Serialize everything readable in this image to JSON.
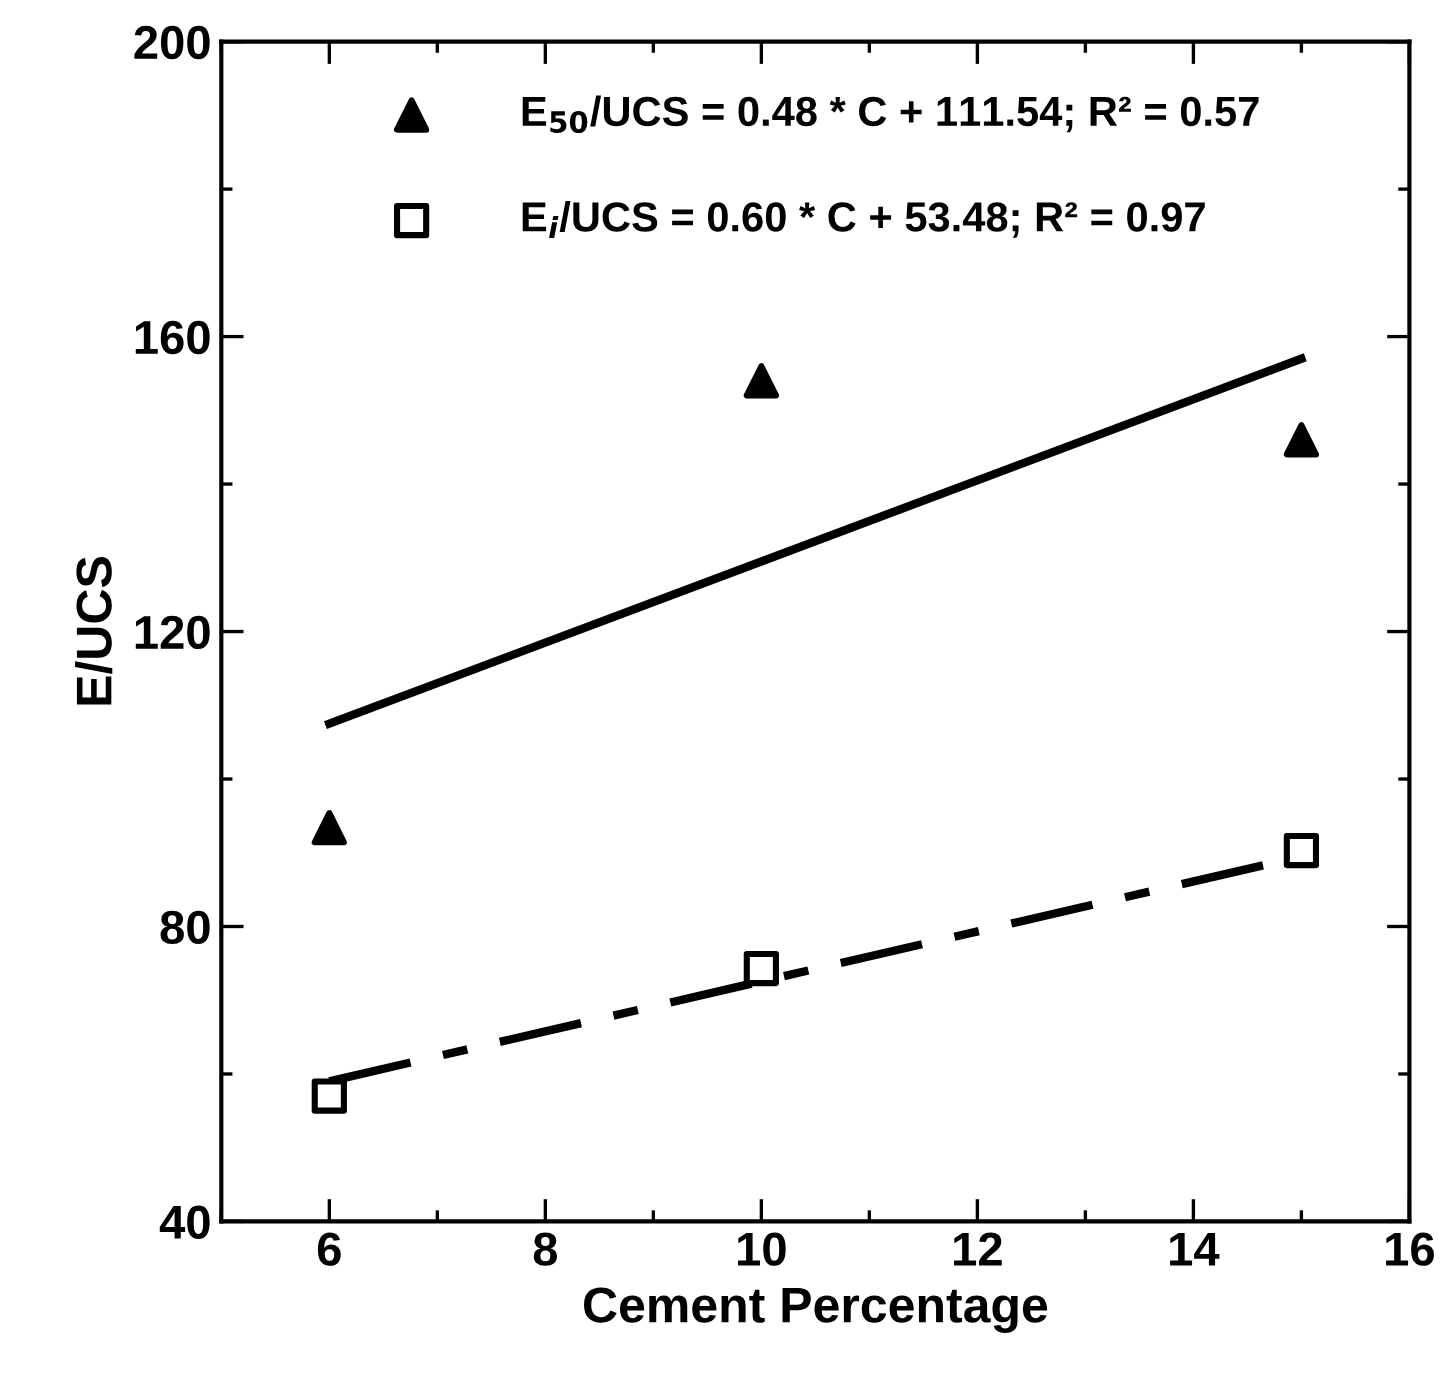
{
  "chart_data": {
    "type": "scatter",
    "xlabel": "Cement Percentage",
    "ylabel": "E/UCS",
    "xlim": [
      5,
      16
    ],
    "xticks": [
      6,
      8,
      10,
      12,
      14,
      16
    ],
    "ylim": [
      40,
      200
    ],
    "yticks": [
      40,
      80,
      120,
      160,
      200
    ],
    "grid": false,
    "legend": "top",
    "series": [
      {
        "name": "E$_{50}$/UCS = 0.48 * C + 111.54; R² = 0.57",
        "color": "#000000",
        "marker": "triangle",
        "x": [
          6,
          10,
          15
        ],
        "values": [
          93.4,
          154,
          146
        ]
      },
      {
        "name": "E$_{i}$/UCS = 0.60 * C + 53.48; R² = 0.97",
        "color": "#000000",
        "marker": "square",
        "x": [
          6,
          10,
          15
        ],
        "values": [
          57,
          74.3,
          90.3
        ]
      },
      {
        "type": "line",
        "color": "#000000",
        "line_style": "solid",
        "x": [
          6,
          15
        ],
        "values": [
          107.5,
          157
        ]
      },
      {
        "type": "line",
        "color": "#000000",
        "line_style": "dashdot",
        "x": [
          6,
          15
        ],
        "values": [
          59,
          89.5
        ]
      }
    ]
  }
}
